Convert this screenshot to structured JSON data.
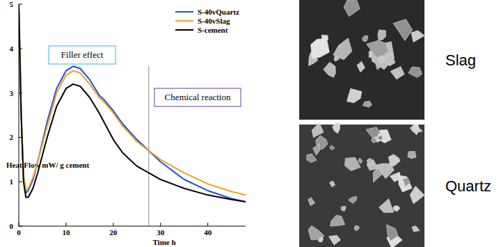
{
  "chart_data": {
    "type": "line",
    "x_label": "Time h",
    "y_label": "Heat Flow mW/ g cement",
    "annotations": [
      {
        "text": "Filler effect"
      },
      {
        "text": "Chemical reaction"
      }
    ],
    "vline": 27.5,
    "x": [
      0,
      0.5,
      1,
      1.5,
      2,
      3,
      4,
      5,
      6,
      8,
      10,
      11.5,
      13,
      15,
      17,
      18,
      20,
      22,
      25,
      27.5,
      30,
      35,
      40,
      45,
      48
    ],
    "series": [
      {
        "name": "S-40vQuartz",
        "color": "#1f4fd8",
        "values": [
          5.0,
          2.6,
          1.1,
          0.75,
          0.8,
          1.05,
          1.45,
          1.9,
          2.35,
          3.1,
          3.5,
          3.6,
          3.55,
          3.3,
          2.95,
          2.85,
          2.6,
          2.3,
          1.95,
          1.7,
          1.45,
          1.05,
          0.8,
          0.62,
          0.55
        ]
      },
      {
        "name": "S-40vSlag",
        "color": "#f0a020",
        "values": [
          5.0,
          2.6,
          1.15,
          0.82,
          0.85,
          1.1,
          1.45,
          1.85,
          2.25,
          3.0,
          3.4,
          3.5,
          3.45,
          3.2,
          2.9,
          2.8,
          2.55,
          2.25,
          1.9,
          1.7,
          1.5,
          1.2,
          0.95,
          0.78,
          0.7
        ]
      },
      {
        "name": "S-cement",
        "color": "#000000",
        "values": [
          5.0,
          2.5,
          1.0,
          0.65,
          0.65,
          0.85,
          1.2,
          1.6,
          2.0,
          2.7,
          3.1,
          3.2,
          3.15,
          2.9,
          2.55,
          2.35,
          1.95,
          1.65,
          1.35,
          1.2,
          1.05,
          0.85,
          0.7,
          0.6,
          0.55
        ]
      }
    ],
    "xlim": [
      0,
      48
    ],
    "xticks": [
      0,
      10,
      20,
      30,
      40
    ],
    "ylim": [
      0,
      5
    ],
    "yticks": [
      0,
      1,
      2,
      3,
      4,
      5
    ],
    "grid": false,
    "legend": "upper right"
  },
  "images": [
    {
      "label": "Slag"
    },
    {
      "label": "Quartz"
    }
  ]
}
